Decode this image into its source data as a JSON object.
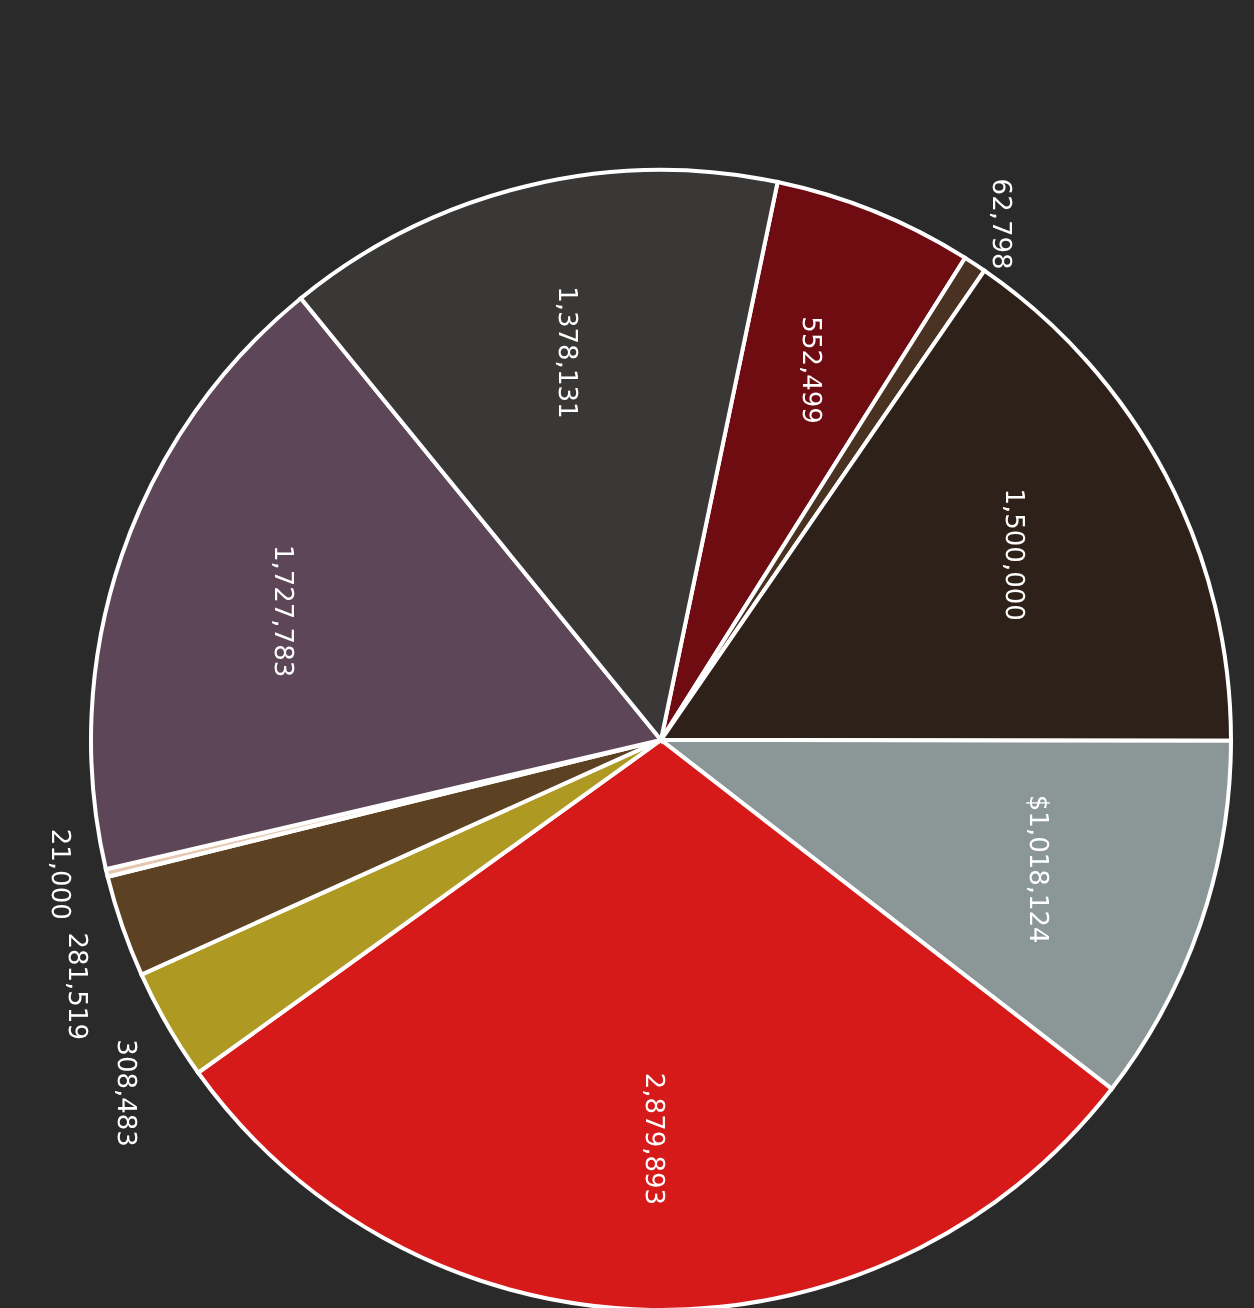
{
  "chart_data": {
    "type": "pie",
    "categories": [
      null,
      null,
      null,
      null,
      null,
      null,
      null,
      null,
      null,
      null
    ],
    "values": [
      552499,
      62798,
      1500000,
      1018124,
      2879893,
      308483,
      281519,
      21000,
      1727783,
      1378131
    ],
    "value_labels": [
      "552,499",
      "62,798",
      "1,500,000",
      "$1,018,124",
      "2,879,893",
      "308,483",
      "281,519",
      "21,000",
      "1,727,783",
      "1,378,131"
    ],
    "colors": [
      "#6e0c12",
      "#4a3222",
      "#2e2119",
      "#8b9796",
      "#d61a1a",
      "#ae9a22",
      "#5c4222",
      "#e6c8b0",
      "#5e4659",
      "#3a3836"
    ]
  }
}
